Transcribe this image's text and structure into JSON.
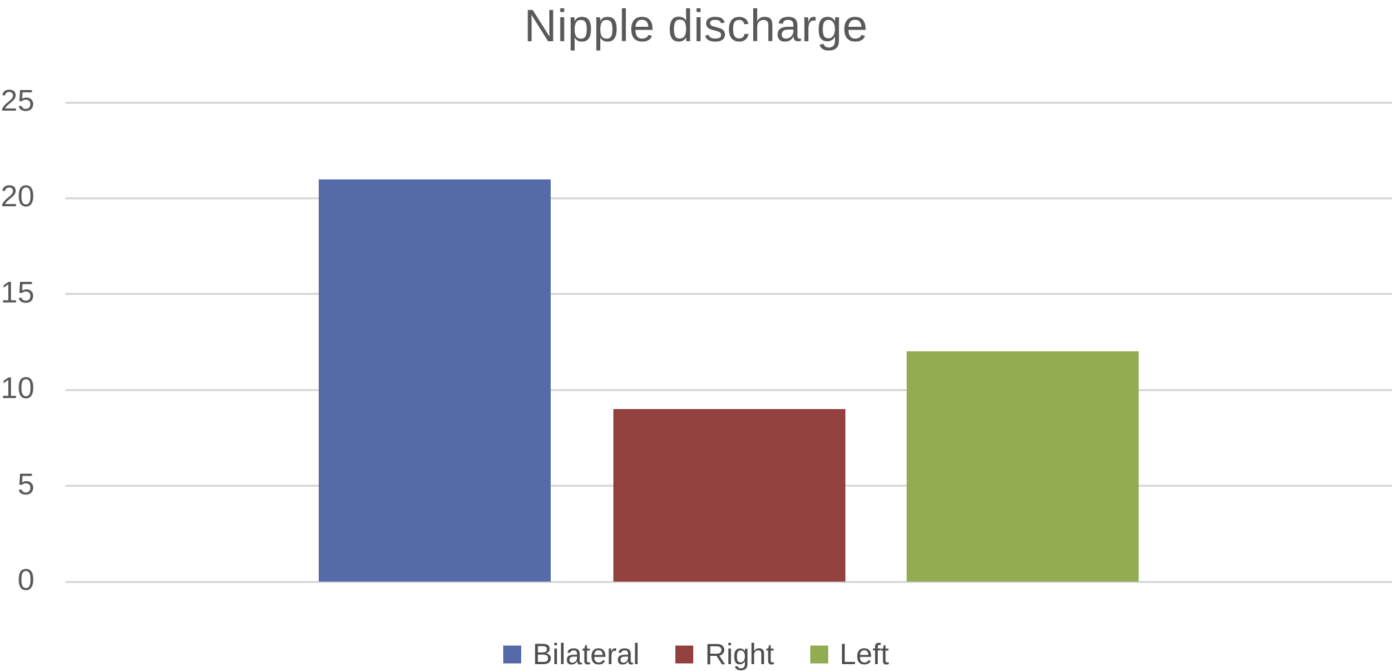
{
  "chart_data": {
    "type": "bar",
    "title": "Nipple discharge",
    "categories": [
      "Bilateral",
      "Right",
      "Left"
    ],
    "values": [
      21,
      9,
      12
    ],
    "colors": [
      "#546aa9",
      "#93413e",
      "#93ac52"
    ],
    "y_ticks": [
      0,
      5,
      10,
      15,
      20,
      25
    ],
    "ylim": [
      0,
      25
    ],
    "xlabel": "",
    "ylabel": "",
    "grid": true,
    "gridline_orientation": "horizontal",
    "legend_position": "bottom",
    "legend": [
      "Bilateral",
      "Right",
      "Left"
    ]
  },
  "style": {
    "title_color": "#595959",
    "tick_color": "#595959",
    "legend_text_color": "#4d4d4d",
    "gridline_color": "#d9d9d9",
    "background": "#ffffff"
  }
}
